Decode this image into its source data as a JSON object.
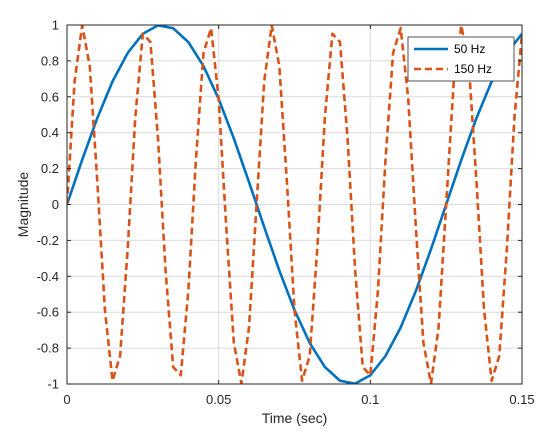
{
  "chart_data": {
    "type": "line",
    "title": "",
    "xlabel": "Time (sec)",
    "ylabel": "Magnitude",
    "xlim": [
      0,
      0.15
    ],
    "ylim": [
      -1,
      1
    ],
    "xticks": [
      0,
      0.05,
      0.1,
      0.15
    ],
    "xtick_labels": [
      "0",
      "0.05",
      "0.1",
      "0.15"
    ],
    "yticks": [
      -1,
      -0.8,
      -0.6,
      -0.4,
      -0.2,
      0,
      0.2,
      0.4,
      0.6,
      0.8,
      1
    ],
    "ytick_labels": [
      "-1",
      "-0.8",
      "-0.6",
      "-0.4",
      "-0.2",
      "0",
      "0.2",
      "0.4",
      "0.6",
      "0.8",
      "1"
    ],
    "grid": true,
    "legend_position": "top-right",
    "series": [
      {
        "name": "50 Hz",
        "color": "#0072BD",
        "line_style": "solid",
        "x": [
          0,
          0.005,
          0.01,
          0.015,
          0.02,
          0.025,
          0.03,
          0.035,
          0.04,
          0.045,
          0.05,
          0.055,
          0.06,
          0.065,
          0.07,
          0.075,
          0.08,
          0.085,
          0.09,
          0.095,
          0.1,
          0.105,
          0.11,
          0.115,
          0.12,
          0.125,
          0.13,
          0.135,
          0.14,
          0.145,
          0.15
        ],
        "y": [
          0,
          0.249,
          0.482,
          0.685,
          0.844,
          0.951,
          0.998,
          0.982,
          0.905,
          0.771,
          0.588,
          0.368,
          0.125,
          -0.125,
          -0.368,
          -0.588,
          -0.771,
          -0.905,
          -0.982,
          -0.998,
          -0.951,
          -0.844,
          -0.685,
          -0.482,
          -0.249,
          0,
          0.249,
          0.482,
          0.685,
          0.844,
          0.951
        ]
      },
      {
        "name": "150 Hz",
        "color": "#D95319",
        "line_style": "dashed",
        "x": [
          0,
          0.0025,
          0.005,
          0.0075,
          0.01,
          0.0125,
          0.015,
          0.0175,
          0.02,
          0.0225,
          0.025,
          0.0275,
          0.03,
          0.0325,
          0.035,
          0.0375,
          0.04,
          0.0425,
          0.045,
          0.0475,
          0.05,
          0.0525,
          0.055,
          0.0575,
          0.06,
          0.0625,
          0.065,
          0.0675,
          0.07,
          0.0725,
          0.075,
          0.0775,
          0.08,
          0.0825,
          0.085,
          0.0875,
          0.09,
          0.0925,
          0.095,
          0.0975,
          0.1,
          0.1025,
          0.105,
          0.1075,
          0.11,
          0.1125,
          0.115,
          0.1175,
          0.12,
          0.1225,
          0.125,
          0.1275,
          0.13,
          0.1325,
          0.135,
          0.1375,
          0.14,
          0.1425,
          0.145,
          0.1475,
          0.15
        ],
        "y": [
          0,
          0.685,
          0.998,
          0.771,
          0.125,
          -0.588,
          -0.982,
          -0.844,
          -0.249,
          0.482,
          0.951,
          0.905,
          0.368,
          -0.368,
          -0.905,
          -0.951,
          -0.482,
          0.249,
          0.844,
          0.982,
          0.588,
          -0.125,
          -0.771,
          -0.998,
          -0.685,
          0,
          0.685,
          0.998,
          0.771,
          0.125,
          -0.588,
          -0.982,
          -0.844,
          -0.249,
          0.482,
          0.951,
          0.905,
          0.368,
          -0.368,
          -0.905,
          -0.951,
          -0.482,
          0.249,
          0.844,
          0.982,
          0.588,
          -0.125,
          -0.771,
          -0.998,
          -0.685,
          0,
          0.685,
          0.998,
          0.771,
          0.125,
          -0.588,
          -0.982,
          -0.844,
          -0.249,
          0.482,
          0.951
        ]
      }
    ]
  }
}
